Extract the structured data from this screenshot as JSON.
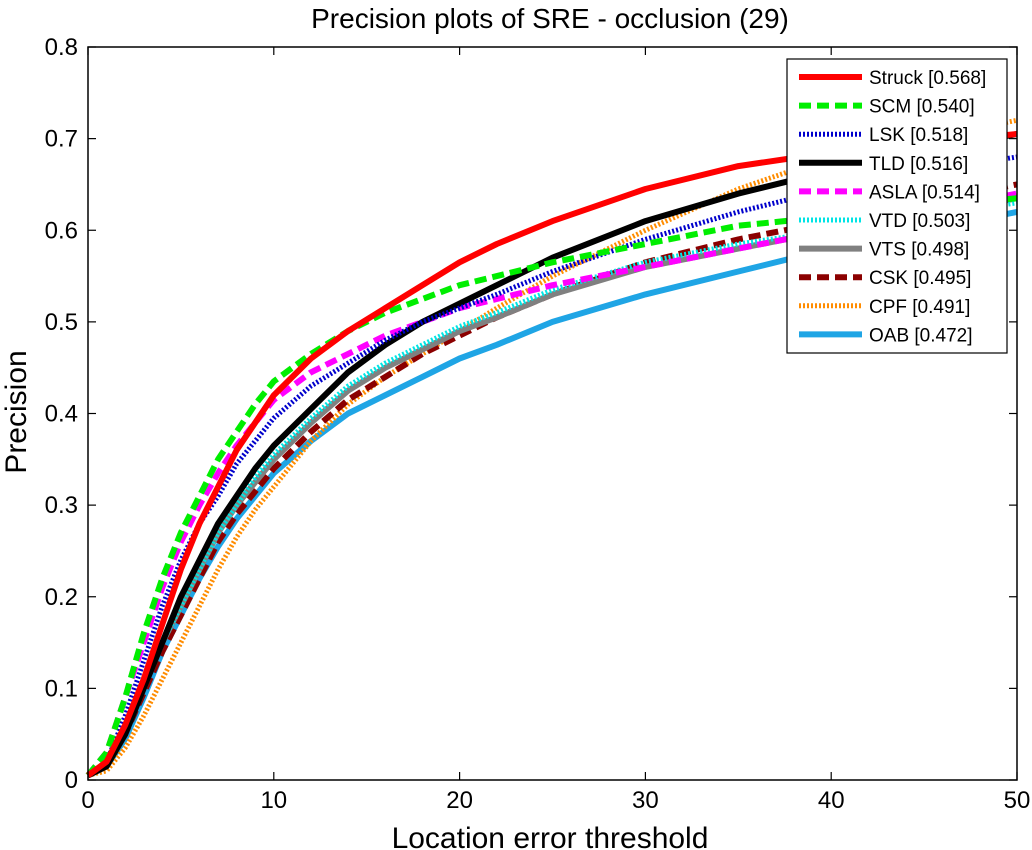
{
  "chart_data": {
    "type": "line",
    "title": "Precision plots of SRE - occlusion (29)",
    "xlabel": "Location error threshold",
    "ylabel": "Precision",
    "xlim": [
      0,
      50
    ],
    "ylim": [
      0,
      0.8
    ],
    "xticks": [
      "0",
      "10",
      "20",
      "30",
      "40",
      "50"
    ],
    "yticks": [
      "0",
      "0.1",
      "0.2",
      "0.3",
      "0.4",
      "0.5",
      "0.6",
      "0.7",
      "0.8"
    ],
    "grid": false,
    "legend_position": "top-right",
    "x": [
      0,
      1,
      2,
      3,
      4,
      5,
      6,
      7,
      8,
      9,
      10,
      12,
      14,
      16,
      18,
      20,
      22,
      25,
      30,
      35,
      40,
      45,
      50
    ],
    "series": [
      {
        "name": "Struck [0.568]",
        "color": "#ff0000",
        "style": "solid",
        "values": [
          0.005,
          0.02,
          0.06,
          0.11,
          0.17,
          0.23,
          0.28,
          0.32,
          0.36,
          0.39,
          0.42,
          0.46,
          0.49,
          0.515,
          0.54,
          0.565,
          0.585,
          0.61,
          0.645,
          0.67,
          0.685,
          0.695,
          0.705
        ]
      },
      {
        "name": "SCM [0.540]",
        "color": "#00ee00",
        "style": "dashed",
        "values": [
          0.005,
          0.03,
          0.09,
          0.16,
          0.22,
          0.27,
          0.31,
          0.35,
          0.38,
          0.41,
          0.435,
          0.465,
          0.49,
          0.51,
          0.525,
          0.54,
          0.55,
          0.565,
          0.585,
          0.605,
          0.615,
          0.625,
          0.635
        ]
      },
      {
        "name": "LSK [0.518]",
        "color": "#0000cc",
        "style": "dotted",
        "values": [
          0.005,
          0.02,
          0.07,
          0.13,
          0.19,
          0.24,
          0.28,
          0.31,
          0.345,
          0.37,
          0.395,
          0.43,
          0.455,
          0.48,
          0.5,
          0.515,
          0.53,
          0.555,
          0.59,
          0.62,
          0.645,
          0.665,
          0.68
        ]
      },
      {
        "name": "TLD [0.516]",
        "color": "#000000",
        "style": "solid",
        "values": [
          0.005,
          0.015,
          0.05,
          0.1,
          0.15,
          0.2,
          0.24,
          0.28,
          0.31,
          0.34,
          0.365,
          0.405,
          0.445,
          0.475,
          0.5,
          0.52,
          0.54,
          0.57,
          0.61,
          0.64,
          0.665,
          0.685,
          0.705
        ]
      },
      {
        "name": "ASLA [0.514]",
        "color": "#ff00ff",
        "style": "dashed",
        "values": [
          0.005,
          0.03,
          0.09,
          0.15,
          0.21,
          0.26,
          0.3,
          0.335,
          0.365,
          0.39,
          0.415,
          0.445,
          0.465,
          0.485,
          0.5,
          0.515,
          0.525,
          0.54,
          0.56,
          0.58,
          0.6,
          0.62,
          0.64
        ]
      },
      {
        "name": "VTD [0.503]",
        "color": "#00e5e5",
        "style": "dotted",
        "values": [
          0.005,
          0.015,
          0.05,
          0.1,
          0.15,
          0.19,
          0.23,
          0.27,
          0.3,
          0.33,
          0.355,
          0.395,
          0.43,
          0.455,
          0.475,
          0.495,
          0.51,
          0.535,
          0.565,
          0.585,
          0.6,
          0.615,
          0.63
        ]
      },
      {
        "name": "VTS [0.498]",
        "color": "#808080",
        "style": "solid",
        "values": [
          0.005,
          0.015,
          0.05,
          0.1,
          0.15,
          0.19,
          0.23,
          0.27,
          0.3,
          0.325,
          0.35,
          0.39,
          0.425,
          0.45,
          0.47,
          0.49,
          0.505,
          0.53,
          0.56,
          0.58,
          0.6,
          0.615,
          0.635
        ]
      },
      {
        "name": "CSK [0.495]",
        "color": "#8b0000",
        "style": "dashed",
        "values": [
          0.005,
          0.015,
          0.05,
          0.095,
          0.14,
          0.18,
          0.22,
          0.26,
          0.29,
          0.315,
          0.34,
          0.38,
          0.415,
          0.44,
          0.465,
          0.485,
          0.505,
          0.53,
          0.565,
          0.59,
          0.61,
          0.63,
          0.65
        ]
      },
      {
        "name": "CPF [0.491]",
        "color": "#ff8c00",
        "style": "dotted",
        "values": [
          0.005,
          0.01,
          0.035,
          0.07,
          0.11,
          0.15,
          0.19,
          0.23,
          0.265,
          0.295,
          0.32,
          0.37,
          0.41,
          0.44,
          0.465,
          0.49,
          0.515,
          0.55,
          0.6,
          0.645,
          0.68,
          0.7,
          0.72
        ]
      },
      {
        "name": "OAB [0.472]",
        "color": "#1fa5e5",
        "style": "solid",
        "values": [
          0.005,
          0.015,
          0.045,
          0.09,
          0.14,
          0.18,
          0.22,
          0.255,
          0.285,
          0.31,
          0.335,
          0.37,
          0.4,
          0.42,
          0.44,
          0.46,
          0.475,
          0.5,
          0.53,
          0.555,
          0.58,
          0.6,
          0.62
        ]
      }
    ]
  }
}
